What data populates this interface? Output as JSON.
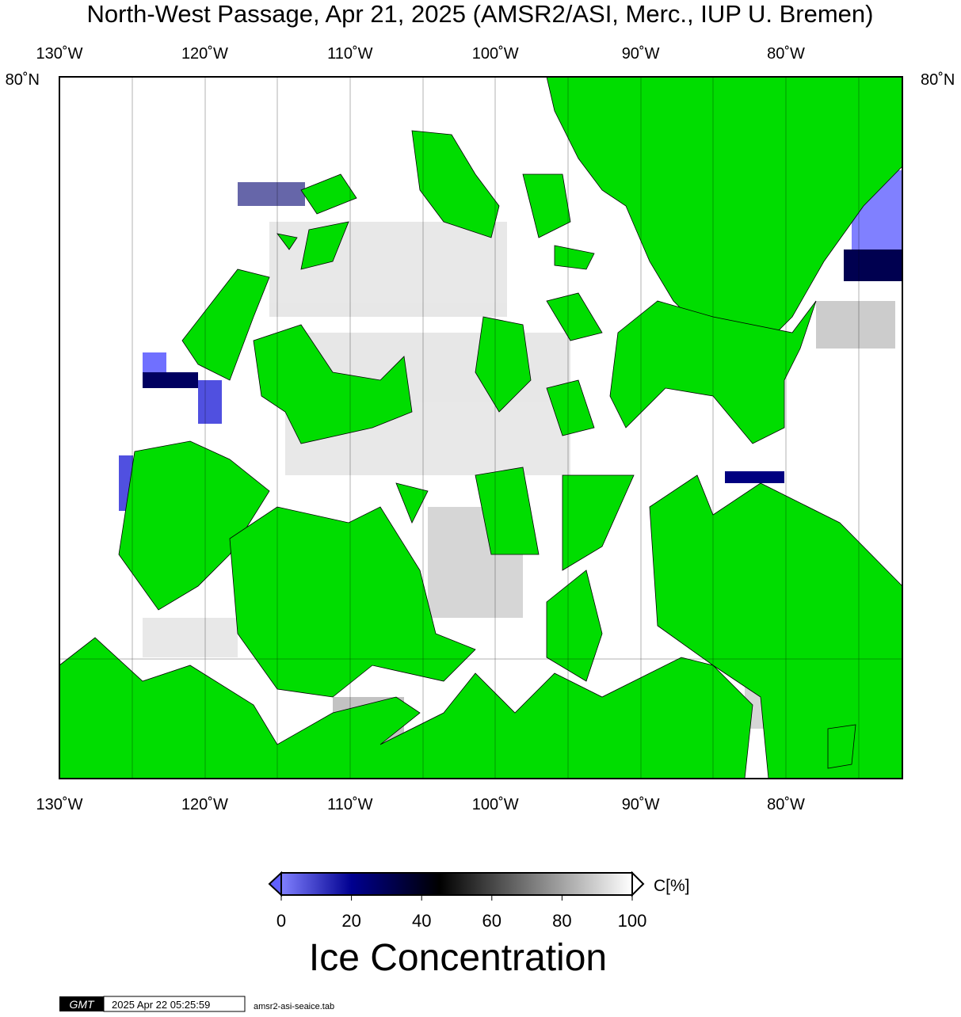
{
  "header": {
    "title": "North-West Passage, Apr 21, 2025 (AMSR2/ASI, Merc., IUP U. Bremen)"
  },
  "map": {
    "lon_labels": [
      "130˚W",
      "120˚W",
      "110˚W",
      "100˚W",
      "90˚W",
      "80˚W"
    ],
    "lat_label": "80˚N"
  },
  "colorbar": {
    "range": [
      0,
      100
    ],
    "ticks": [
      0,
      20,
      40,
      60,
      80,
      100
    ],
    "unit": "C[%]",
    "title": "Ice Concentration"
  },
  "footer": {
    "logo": "GMT",
    "timestamp": "2025 Apr 22 05:25:59",
    "file": "amsr2-asi-seaice.tab"
  }
}
